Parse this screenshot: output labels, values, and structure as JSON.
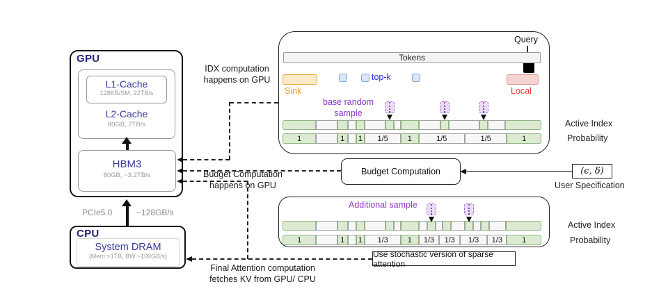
{
  "hardware": {
    "gpu_label": "GPU",
    "l1_name": "L1-Cache",
    "l1_spec": "128KB/SM, 22TB/s",
    "l2_name": "L2-Cache",
    "l2_spec": "80GB, 7TB/s",
    "hbm_name": "HBM3",
    "hbm_spec": "80GB, ~3.2TB/s",
    "pcie_label": "PCIe5.0",
    "pcie_bw": "~128GB/s",
    "cpu_label": "CPU",
    "dram_name": "System DRAM",
    "dram_spec": "(Mem:>1TB, BW:~100GB/s)"
  },
  "notes": {
    "idx": "IDX computation\nhappens on GPU",
    "budget": "Budget Computation\nhappens on GPU",
    "final": "Final Attention computation\nfetches KV from GPU/ CPU"
  },
  "budget_box_label": "Budget Computation",
  "user_spec": {
    "value": "(ϵ, δ)",
    "label": "User Specification"
  },
  "stochastic_box_label": "Use stochastic version of sparse attention",
  "panels": {
    "top": {
      "query_label": "Query",
      "tokens_label": "Tokens",
      "sink_label": "Sink",
      "topk_label": "top-k",
      "local_label": "Local",
      "sample_label": "base random\nsample",
      "active_index_label": "Active Index",
      "probability_label": "Probability",
      "sample_positions": [
        41.4,
        62.5,
        77.6
      ],
      "active_segments": [
        {
          "c": "g",
          "t": "",
          "w": 13
        },
        {
          "c": "w",
          "t": "",
          "w": 8.2
        },
        {
          "c": "g",
          "t": "",
          "w": 4
        },
        {
          "c": "w",
          "t": "",
          "w": 3.2
        },
        {
          "c": "g",
          "t": "",
          "w": 3.4
        },
        {
          "c": "w",
          "t": "",
          "w": 8
        },
        {
          "c": "g",
          "t": "",
          "w": 3.2
        },
        {
          "c": "w",
          "t": "",
          "w": 2.7
        },
        {
          "c": "g",
          "t": "",
          "w": 6.9
        },
        {
          "c": "w",
          "t": "",
          "w": 8.5
        },
        {
          "c": "g",
          "t": "",
          "w": 3.2
        },
        {
          "c": "w",
          "t": "",
          "w": 11.9
        },
        {
          "c": "g",
          "t": "",
          "w": 3.2
        },
        {
          "c": "w",
          "t": "",
          "w": 6.6
        },
        {
          "c": "g",
          "t": "",
          "w": 14
        }
      ],
      "prob_segments": [
        {
          "c": "g",
          "t": "1",
          "w": 13
        },
        {
          "c": "w",
          "t": "",
          "w": 8.2
        },
        {
          "c": "g",
          "t": "1",
          "w": 4
        },
        {
          "c": "w",
          "t": "",
          "w": 3.2
        },
        {
          "c": "g",
          "t": "1",
          "w": 3.4
        },
        {
          "c": "w",
          "t": "1/5",
          "w": 13.9
        },
        {
          "c": "g",
          "t": "1",
          "w": 6.9
        },
        {
          "c": "w",
          "t": "1/5",
          "w": 17.8
        },
        {
          "c": "w",
          "t": "1/5",
          "w": 16.3
        },
        {
          "c": "g",
          "t": "1",
          "w": 13.3
        }
      ]
    },
    "bottom": {
      "sample_label": "Additional sample",
      "active_index_label": "Active Index",
      "probability_label": "Probability",
      "sample_positions": [
        57.6,
        72.0
      ],
      "active_segments": [
        {
          "c": "g",
          "t": "",
          "w": 13
        },
        {
          "c": "w",
          "t": "",
          "w": 8.2
        },
        {
          "c": "g",
          "t": "",
          "w": 4
        },
        {
          "c": "w",
          "t": "",
          "w": 3.2
        },
        {
          "c": "g",
          "t": "",
          "w": 3.4
        },
        {
          "c": "w",
          "t": "",
          "w": 8
        },
        {
          "c": "g",
          "t": "",
          "w": 3.2
        },
        {
          "c": "w",
          "t": "",
          "w": 2.7
        },
        {
          "c": "g",
          "t": "",
          "w": 6.9
        },
        {
          "c": "w",
          "t": "",
          "w": 3.4
        },
        {
          "c": "g",
          "t": "",
          "w": 3.2
        },
        {
          "c": "w",
          "t": "",
          "w": 2.6
        },
        {
          "c": "g",
          "t": "",
          "w": 3.2
        },
        {
          "c": "w",
          "t": "",
          "w": 5.4
        },
        {
          "c": "g",
          "t": "",
          "w": 3.2
        },
        {
          "c": "w",
          "t": "",
          "w": 3
        },
        {
          "c": "g",
          "t": "",
          "w": 3.2
        },
        {
          "c": "w",
          "t": "",
          "w": 6.6
        },
        {
          "c": "g",
          "t": "",
          "w": 13.6
        }
      ],
      "prob_segments": [
        {
          "c": "g",
          "t": "1",
          "w": 13
        },
        {
          "c": "w",
          "t": "",
          "w": 8.2
        },
        {
          "c": "g",
          "t": "1",
          "w": 4
        },
        {
          "c": "w",
          "t": "",
          "w": 3.2
        },
        {
          "c": "g",
          "t": "1",
          "w": 3.4
        },
        {
          "c": "w",
          "t": "1/3",
          "w": 13.9
        },
        {
          "c": "g",
          "t": "1",
          "w": 6.9
        },
        {
          "c": "w",
          "t": "1/3",
          "w": 8
        },
        {
          "c": "w",
          "t": "1/3",
          "w": 8
        },
        {
          "c": "w",
          "t": "1/3",
          "w": 10.5
        },
        {
          "c": "w",
          "t": "1/3",
          "w": 7.6
        },
        {
          "c": "g",
          "t": "1",
          "w": 13.3
        }
      ]
    }
  },
  "colors": {
    "navy_label": "#23237d",
    "purple_name": "#3a3a99",
    "green_fill": "#dcead2",
    "green_border": "#93b383",
    "sink_border": "#e8a43c",
    "topk_blue": "#2a2ad4",
    "local_red": "#e23b3b",
    "sample_purple": "#8f35c9",
    "gray_spec": "#9a9a9a"
  }
}
